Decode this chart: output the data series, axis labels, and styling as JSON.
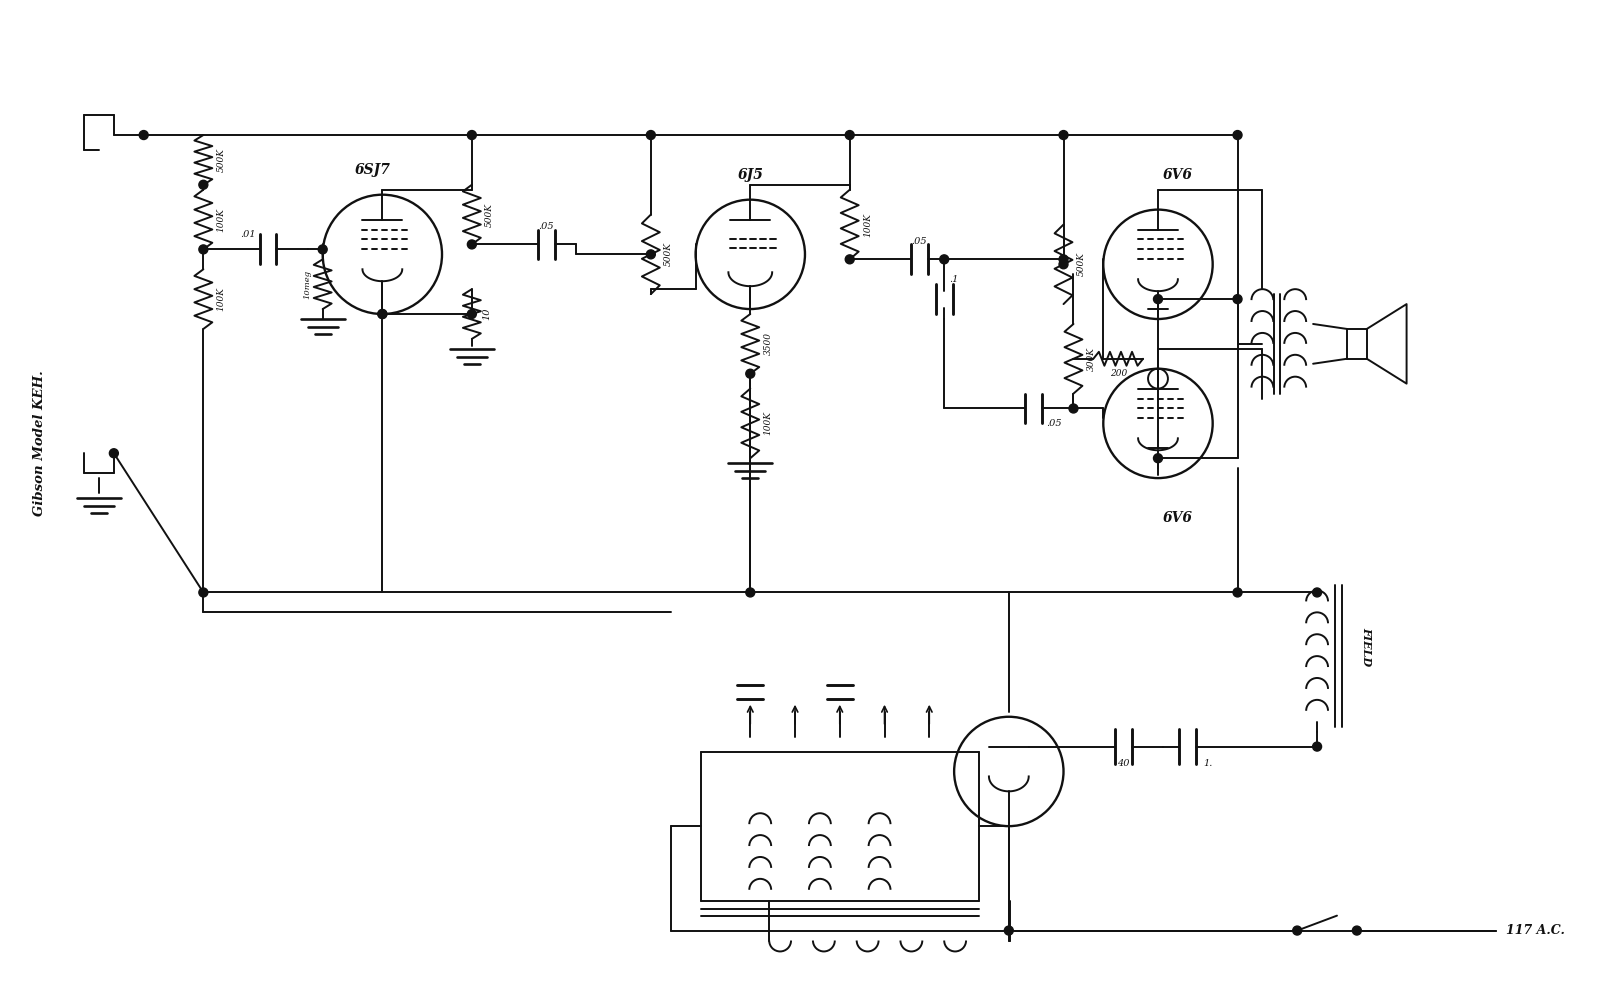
{
  "title": "Gibson Model KEH.",
  "bg_color": "#ffffff",
  "line_color": "#111111",
  "figsize": [
    16.0,
    9.93
  ],
  "dpi": 100,
  "labels": {
    "tube1": "6SJ7",
    "tube2": "6J5",
    "tube3": "6V6",
    "tube4": "6V6",
    "r_500k_top": "500K",
    "r_100k_upper": "100K",
    "r_100k_lower": "100K",
    "r_10meg": "10meg",
    "r_500k_plate": "500K",
    "r_10": "10",
    "r_500k_2": "500K",
    "r_100k_pl2": "100K",
    "r_3500": "3500",
    "r_100k_3": "100K",
    "r_500k_3": "500K",
    "r_300k": "300K",
    "r_200": "200",
    "c_01": ".01",
    "c_05_1": ".05",
    "c_05_2": ".05",
    "c_05_3": ".05",
    "c_1": ".1",
    "c_40": "40",
    "c_1uf": "1.",
    "field": "FIELD",
    "ac": "117 A.C."
  }
}
